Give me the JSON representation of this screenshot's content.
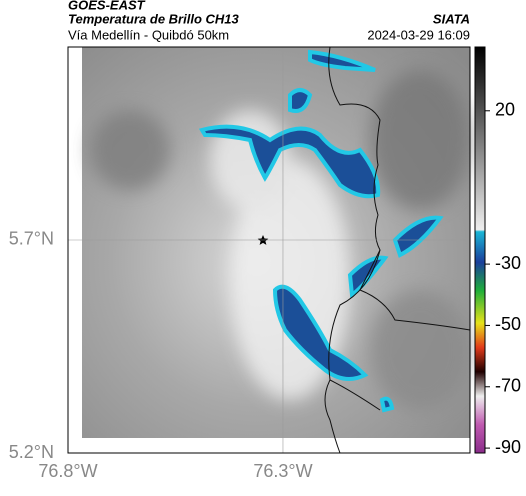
{
  "header": {
    "title": "GOES-EAST",
    "subtitle": "Temperatura de Brillo CH13",
    "route": "Vía Medellín - Quibdó 50km",
    "source": "SIATA",
    "timestamp": "2024-03-29 16:09"
  },
  "map": {
    "xlim": [
      -76.8,
      -75.865
    ],
    "ylim": [
      5.2,
      6.153
    ],
    "xticks": [
      {
        "value": -76.8,
        "label": "76.8°W"
      },
      {
        "value": -76.3,
        "label": "76.3°W"
      }
    ],
    "yticks": [
      {
        "value": 5.2,
        "label": "5.2°N"
      },
      {
        "value": 5.7,
        "label": "5.7°N"
      }
    ],
    "grid": true
  },
  "colorbar": {
    "lim": [
      -91.6,
      40.8
    ],
    "ticks": [
      20,
      -30,
      -50,
      -70,
      -90
    ]
  }
}
